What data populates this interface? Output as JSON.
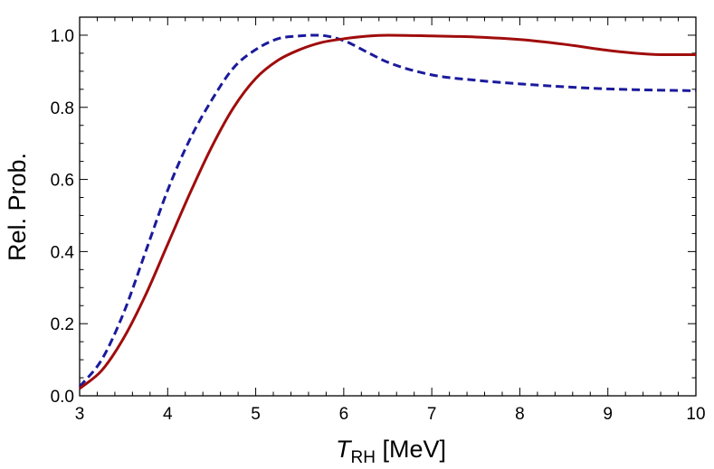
{
  "chart_data": {
    "type": "line",
    "title": "",
    "xlabel": "T",
    "xlabel_sub": "RH",
    "xlabel_unit": " [MeV]",
    "ylabel": "Rel. Prob.",
    "xlim": [
      3,
      10
    ],
    "ylim": [
      0,
      1.05
    ],
    "xticks": [
      3,
      4,
      5,
      6,
      7,
      8,
      9,
      10
    ],
    "xtick_labels": [
      "3",
      "4",
      "5",
      "6",
      "7",
      "8",
      "9",
      "10"
    ],
    "yticks": [
      0,
      0.2,
      0.4,
      0.6,
      0.8,
      1.0
    ],
    "ytick_labels": [
      "0.0",
      "0.2",
      "0.4",
      "0.6",
      "0.8",
      "1.0"
    ],
    "grid": false,
    "series": [
      {
        "name": "dashed-blue",
        "color": "#1a1a9c",
        "style": "dashed",
        "x": [
          3.0,
          3.25,
          3.5,
          3.75,
          4.0,
          4.25,
          4.5,
          4.75,
          5.0,
          5.25,
          5.5,
          5.7,
          6.0,
          6.25,
          6.5,
          7.0,
          7.5,
          8.0,
          8.5,
          9.0,
          9.5,
          10.0
        ],
        "y": [
          0.025,
          0.1,
          0.23,
          0.4,
          0.57,
          0.71,
          0.82,
          0.91,
          0.96,
          0.99,
          0.998,
          1.0,
          0.985,
          0.955,
          0.925,
          0.89,
          0.875,
          0.865,
          0.857,
          0.851,
          0.848,
          0.846
        ]
      },
      {
        "name": "solid-red",
        "color": "#a00c0c",
        "style": "solid",
        "x": [
          3.0,
          3.25,
          3.5,
          3.75,
          4.0,
          4.25,
          4.5,
          4.75,
          5.0,
          5.25,
          5.5,
          5.75,
          6.0,
          6.25,
          6.5,
          7.0,
          7.5,
          8.0,
          8.5,
          9.0,
          9.5,
          10.0
        ],
        "y": [
          0.02,
          0.07,
          0.16,
          0.28,
          0.42,
          0.56,
          0.69,
          0.8,
          0.88,
          0.93,
          0.96,
          0.98,
          0.99,
          0.997,
          1.0,
          0.998,
          0.995,
          0.988,
          0.975,
          0.958,
          0.947,
          0.946
        ]
      }
    ]
  }
}
